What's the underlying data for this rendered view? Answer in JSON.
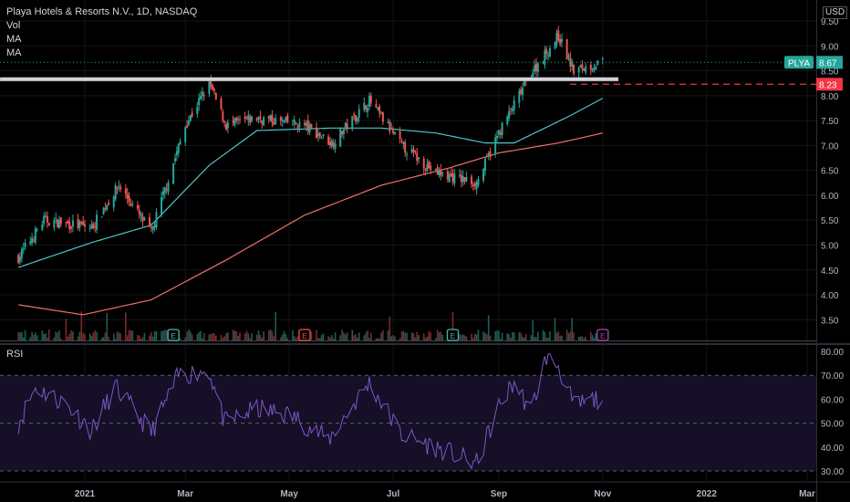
{
  "header": {
    "title": "Playa Hotels & Resorts N.V., 1D, NASDAQ",
    "indicators": [
      "Vol",
      "MA",
      "MA"
    ],
    "currency": "USD"
  },
  "rsi_panel": {
    "label": "RSI"
  },
  "symbol_tag": {
    "label": "PLYA",
    "value": "8.67"
  },
  "level_tag": {
    "value": "8.23"
  },
  "earnings_marker": "E",
  "colors": {
    "up": "#26a69a",
    "down": "#ef5350",
    "ma_fast": "#4fc3c7",
    "ma_slow": "#f0706c",
    "rsi": "#7e57c2",
    "tag_green": "#26a69a",
    "tag_red": "#f23645",
    "support": "#d1d4dc"
  },
  "chart_data": [
    {
      "type": "candlestick",
      "title": "Playa Hotels & Resorts N.V., 1D, NASDAQ",
      "symbol": "PLYA",
      "y_ticks": [
        "9.50",
        "9.00",
        "8.50",
        "8.00",
        "7.50",
        "7.00",
        "6.50",
        "6.00",
        "5.50",
        "5.00",
        "4.50",
        "4.00",
        "3.50"
      ],
      "ylim": [
        3.15,
        9.85
      ],
      "x_ticks": [
        "2021",
        "Mar",
        "May",
        "Jul",
        "Sep",
        "Nov",
        "2022",
        "Mar"
      ],
      "last_price": 8.67,
      "horizontal_level": 8.23,
      "support_line": 8.33,
      "price_keypoints": [
        {
          "date": "2020-11-23",
          "close": 4.75
        },
        {
          "date": "2020-12-08",
          "close": 5.5
        },
        {
          "date": "2021-01-05",
          "close": 5.35
        },
        {
          "date": "2021-01-21",
          "close": 6.2
        },
        {
          "date": "2021-02-09",
          "close": 5.25
        },
        {
          "date": "2021-03-01",
          "close": 7.4
        },
        {
          "date": "2021-03-15",
          "close": 8.25
        },
        {
          "date": "2021-03-25",
          "close": 7.4
        },
        {
          "date": "2021-04-12",
          "close": 7.55
        },
        {
          "date": "2021-05-10",
          "close": 7.4
        },
        {
          "date": "2021-05-26",
          "close": 7.05
        },
        {
          "date": "2021-06-17",
          "close": 7.9
        },
        {
          "date": "2021-07-06",
          "close": 7.0
        },
        {
          "date": "2021-07-26",
          "close": 6.45
        },
        {
          "date": "2021-08-19",
          "close": 6.25
        },
        {
          "date": "2021-09-01",
          "close": 7.25
        },
        {
          "date": "2021-09-20",
          "close": 8.45
        },
        {
          "date": "2021-10-06",
          "close": 9.2
        },
        {
          "date": "2021-10-15",
          "close": 8.5
        },
        {
          "date": "2021-11-01",
          "close": 8.67
        }
      ],
      "ma_fast_keypoints": [
        {
          "date": "2020-11-23",
          "value": 4.55
        },
        {
          "date": "2021-01-05",
          "value": 5.05
        },
        {
          "date": "2021-02-09",
          "value": 5.4
        },
        {
          "date": "2021-03-15",
          "value": 6.6
        },
        {
          "date": "2021-04-12",
          "value": 7.3
        },
        {
          "date": "2021-05-26",
          "value": 7.35
        },
        {
          "date": "2021-06-24",
          "value": 7.35
        },
        {
          "date": "2021-07-26",
          "value": 7.25
        },
        {
          "date": "2021-08-24",
          "value": 7.05
        },
        {
          "date": "2021-09-10",
          "value": 7.05
        },
        {
          "date": "2021-10-13",
          "value": 7.6
        },
        {
          "date": "2021-11-01",
          "value": 7.95
        }
      ],
      "ma_slow_keypoints": [
        {
          "date": "2020-11-23",
          "value": 3.8
        },
        {
          "date": "2020-12-31",
          "value": 3.6
        },
        {
          "date": "2021-02-09",
          "value": 3.9
        },
        {
          "date": "2021-03-25",
          "value": 4.7
        },
        {
          "date": "2021-05-10",
          "value": 5.6
        },
        {
          "date": "2021-06-24",
          "value": 6.2
        },
        {
          "date": "2021-08-03",
          "value": 6.55
        },
        {
          "date": "2021-09-01",
          "value": 6.85
        },
        {
          "date": "2021-10-06",
          "value": 7.05
        },
        {
          "date": "2021-11-01",
          "value": 7.25
        }
      ],
      "earnings_dates": [
        "2021-02-22",
        "2021-05-10",
        "2021-08-05",
        "2021-11-01"
      ]
    },
    {
      "type": "line",
      "title": "RSI",
      "y_ticks": [
        "80.00",
        "70.00",
        "60.00",
        "50.00",
        "40.00",
        "30.00"
      ],
      "ylim": [
        26.5,
        80.5
      ],
      "bands": [
        70,
        50,
        30
      ],
      "keypoints": [
        {
          "date": "2020-11-23",
          "value": 50
        },
        {
          "date": "2020-12-03",
          "value": 65
        },
        {
          "date": "2020-12-21",
          "value": 58
        },
        {
          "date": "2021-01-05",
          "value": 47
        },
        {
          "date": "2021-01-19",
          "value": 65
        },
        {
          "date": "2021-02-09",
          "value": 46
        },
        {
          "date": "2021-02-25",
          "value": 70
        },
        {
          "date": "2021-03-15",
          "value": 72
        },
        {
          "date": "2021-03-24",
          "value": 50
        },
        {
          "date": "2021-04-12",
          "value": 56
        },
        {
          "date": "2021-05-03",
          "value": 53
        },
        {
          "date": "2021-05-24",
          "value": 43
        },
        {
          "date": "2021-06-17",
          "value": 67
        },
        {
          "date": "2021-07-06",
          "value": 45
        },
        {
          "date": "2021-07-26",
          "value": 40
        },
        {
          "date": "2021-08-19",
          "value": 33
        },
        {
          "date": "2021-09-01",
          "value": 57
        },
        {
          "date": "2021-09-10",
          "value": 67
        },
        {
          "date": "2021-09-20",
          "value": 55
        },
        {
          "date": "2021-09-29",
          "value": 78
        },
        {
          "date": "2021-10-06",
          "value": 74
        },
        {
          "date": "2021-10-15",
          "value": 57
        },
        {
          "date": "2021-11-01",
          "value": 61
        }
      ]
    }
  ]
}
